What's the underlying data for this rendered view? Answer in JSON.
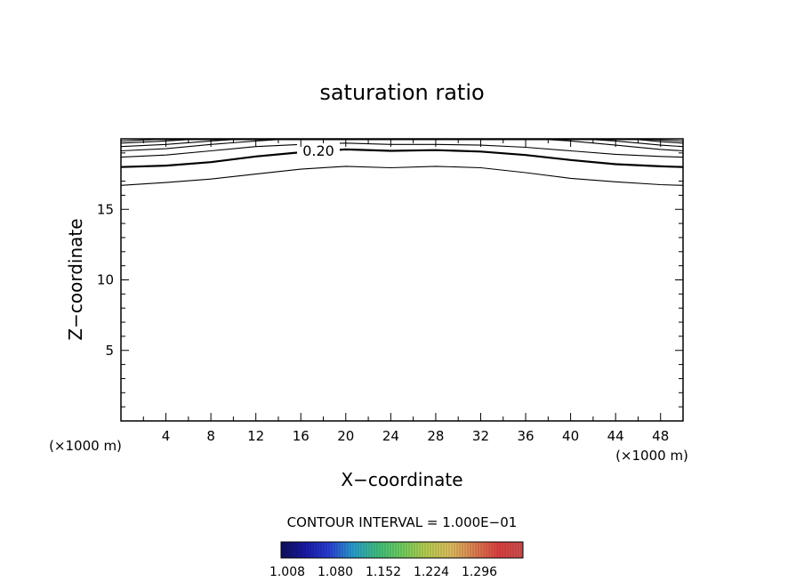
{
  "chart_data": {
    "type": "contour",
    "title": "saturation ratio",
    "xlabel": "X−coordinate",
    "ylabel": "Z−coordinate",
    "x_unit_left": "(×1000 m)",
    "x_unit_right": "(×1000 m)",
    "xlim": [
      0,
      50
    ],
    "ylim": [
      0,
      20
    ],
    "x_ticks": [
      4,
      8,
      12,
      16,
      20,
      24,
      28,
      32,
      36,
      40,
      44,
      48
    ],
    "x_tick_labels": [
      "4",
      "8",
      "12",
      "16",
      "20",
      "24",
      "28",
      "32",
      "36",
      "40",
      "44",
      "48"
    ],
    "y_ticks": [
      5,
      10,
      15
    ],
    "y_tick_labels": [
      "5",
      "10",
      "15"
    ],
    "grid": false,
    "contour_label": "0.20",
    "contour_interval_text": "CONTOUR INTERVAL = 1.000E−01",
    "contours": [
      {
        "x": [
          0,
          4,
          8,
          12,
          16,
          20,
          24,
          28,
          32,
          36,
          40,
          44,
          48,
          50
        ],
        "y": [
          16.7,
          16.9,
          17.15,
          17.5,
          17.85,
          18.05,
          17.95,
          18.05,
          17.95,
          17.6,
          17.2,
          16.95,
          16.75,
          16.7
        ]
      },
      {
        "x": [
          0,
          4,
          8,
          12,
          16,
          20,
          24,
          28,
          32,
          36,
          40,
          44,
          48,
          50
        ],
        "y": [
          18.0,
          18.1,
          18.35,
          18.75,
          19.05,
          19.25,
          19.15,
          19.2,
          19.1,
          18.85,
          18.5,
          18.2,
          18.05,
          18.0
        ],
        "bold": true
      },
      {
        "x": [
          0,
          4,
          8,
          12,
          16,
          20,
          24,
          28,
          32,
          36,
          40,
          44,
          48,
          50
        ],
        "y": [
          18.7,
          18.85,
          19.15,
          19.45,
          19.6,
          19.7,
          19.6,
          19.6,
          19.55,
          19.4,
          19.15,
          18.9,
          18.75,
          18.7
        ]
      },
      {
        "x": [
          0,
          4,
          8,
          12,
          14,
          38,
          40,
          44,
          48,
          50
        ],
        "y": [
          19.15,
          19.3,
          19.6,
          19.85,
          19.95,
          19.95,
          19.85,
          19.55,
          19.25,
          19.15
        ]
      },
      {
        "x": [
          0,
          4,
          8,
          10,
          42,
          44,
          48,
          50
        ],
        "y": [
          19.45,
          19.6,
          19.85,
          19.95,
          19.95,
          19.85,
          19.55,
          19.45
        ]
      },
      {
        "x": [
          0,
          4,
          6,
          46,
          48,
          50
        ],
        "y": [
          19.7,
          19.85,
          19.95,
          19.95,
          19.8,
          19.7
        ]
      },
      {
        "x": [
          0,
          3,
          47,
          50
        ],
        "y": [
          19.85,
          19.95,
          19.95,
          19.85
        ]
      }
    ],
    "colorbar": {
      "tick_labels": [
        "1.008",
        "1.080",
        "1.152",
        "1.224",
        "1.296"
      ],
      "colormap": [
        "#10105a",
        "#1a1aa8",
        "#2a40d8",
        "#2aa0d0",
        "#40c080",
        "#70d060",
        "#b8d050",
        "#e0c060",
        "#e08050",
        "#e04040",
        "#d05050"
      ]
    }
  }
}
